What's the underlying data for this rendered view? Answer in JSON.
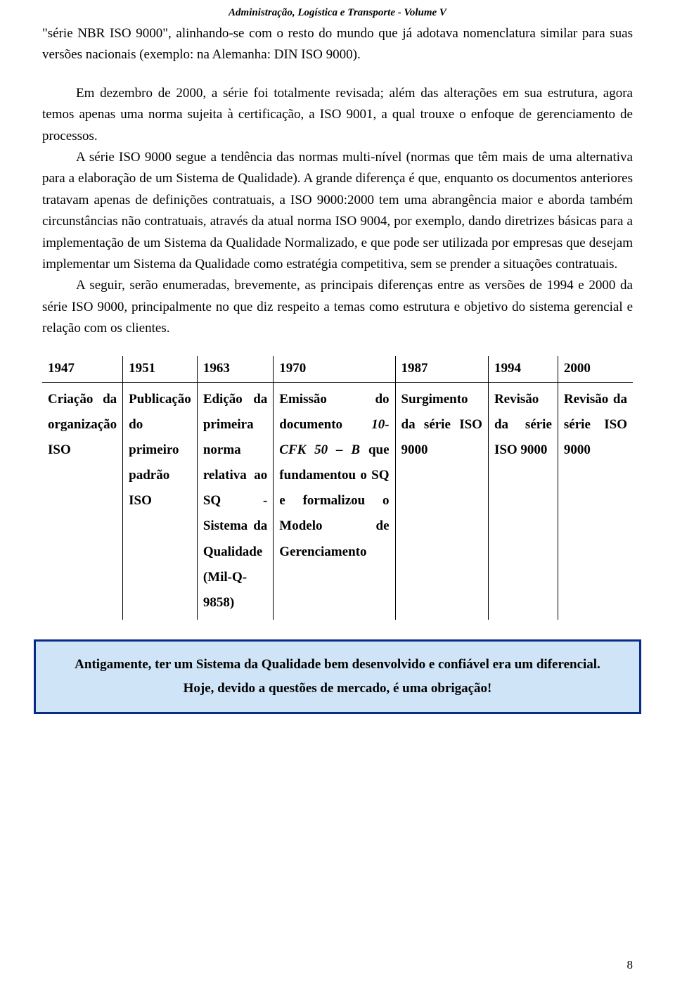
{
  "header": "Administração, Logística  e  Transporte - Volume V",
  "para1": "\"série NBR ISO 9000\", alinhando-se com o resto do mundo que já adotava nomenclatura similar para suas versões nacionais (exemplo: na Alemanha: DIN ISO 9000).",
  "para2": "Em dezembro de 2000, a série foi totalmente revisada; além das alterações em sua estrutura, agora temos apenas uma norma sujeita à certificação, a ISO 9001, a qual trouxe o enfoque de gerenciamento de processos.",
  "para3": "A série ISO 9000 segue a tendência das normas multi-nível (normas que têm mais de uma alternativa para a elaboração de um Sistema de Qualidade). A grande diferença é que, enquanto os documentos anteriores tratavam apenas de definições contratuais, a ISO 9000:2000 tem  uma abrangência maior e aborda também circunstâncias não contratuais, através da atual norma ISO 9004, por exemplo, dando diretrizes básicas para a implementação de um Sistema da Qualidade Normalizado, e que pode ser utilizada por empresas que desejam implementar um Sistema da Qualidade como estratégia competitiva, sem se prender a situações contratuais.",
  "para4": "A seguir, serão enumeradas, brevemente, as principais diferenças entre as versões de 1994 e 2000 da série ISO 9000, principalmente no que diz respeito a temas como estrutura e objetivo do sistema gerencial e relação com os clientes.",
  "table": {
    "years": [
      "1947",
      "1951",
      "1963",
      "1970",
      "1987",
      "1994",
      "2000"
    ],
    "cells": {
      "c1": "Criação da organização ISO",
      "c2": "Publicação do primeiro padrão ISO",
      "c3": "Edição da primeira norma relativa ao SQ - Sistema da Qualidade (Mil-Q-9858)",
      "c4_pre": "Emissão do documento ",
      "c4_italic": "10-CFK 50 – B",
      "c4_post": " que fundamentou o SQ e formalizou o Modelo de Gerenciamento",
      "c5": "Surgimento da série ISO 9000",
      "c6": "Revisão da série ISO 9000",
      "c7": "Revisão da série ISO 9000"
    }
  },
  "callout": "Antigamente, ter um Sistema da Qualidade bem desenvolvido e confiável era um diferencial. Hoje, devido a questões de mercado, é uma obrigação!",
  "pageNumber": "8",
  "colors": {
    "callout_border": "#0a2a8a",
    "callout_bg": "#cfe5f7",
    "text": "#000000",
    "page_bg": "#ffffff"
  }
}
